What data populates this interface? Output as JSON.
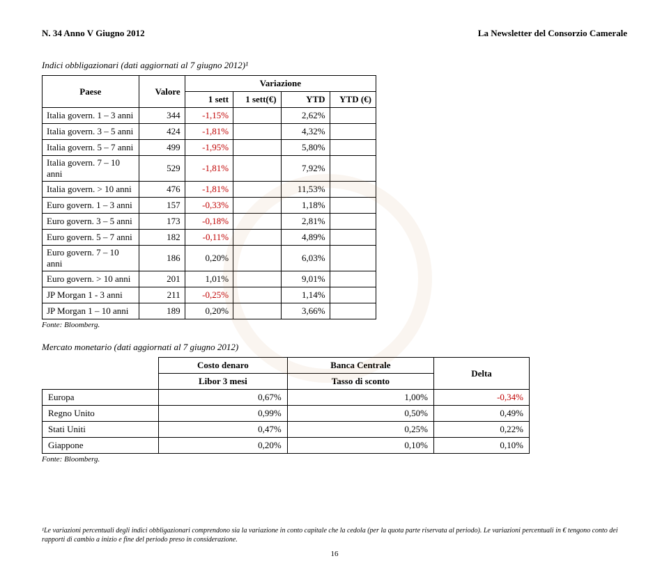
{
  "header": {
    "left": "N. 34   Anno V   Giugno 2012",
    "right": "La Newsletter del Consorzio Camerale"
  },
  "table1": {
    "title": "Indici obbligazionari (dati aggiornati al 7 giugno 2012)¹",
    "headers": {
      "paese": "Paese",
      "valore": "Valore",
      "variazione": "Variazione",
      "sett": "1 sett",
      "sett_e": "1 sett(€)",
      "ytd": "YTD",
      "ytd_e": "YTD (€)"
    },
    "rows": [
      {
        "paese": "Italia govern. 1 – 3 anni",
        "valore": "344",
        "sett": "-1,15%",
        "sett_neg": true,
        "sett_e": "",
        "ytd": "2,62%",
        "ytd_neg": false,
        "ytd_e": ""
      },
      {
        "paese": "Italia govern. 3 – 5 anni",
        "valore": "424",
        "sett": "-1,81%",
        "sett_neg": true,
        "sett_e": "",
        "ytd": "4,32%",
        "ytd_neg": false,
        "ytd_e": ""
      },
      {
        "paese": "Italia govern. 5 – 7 anni",
        "valore": "499",
        "sett": "-1,95%",
        "sett_neg": true,
        "sett_e": "",
        "ytd": "5,80%",
        "ytd_neg": false,
        "ytd_e": ""
      },
      {
        "paese": "Italia govern. 7 – 10 anni",
        "valore": "529",
        "sett": "-1,81%",
        "sett_neg": true,
        "sett_e": "",
        "ytd": "7,92%",
        "ytd_neg": false,
        "ytd_e": ""
      },
      {
        "paese": "Italia govern. > 10 anni",
        "valore": "476",
        "sett": "-1,81%",
        "sett_neg": true,
        "sett_e": "",
        "ytd": "11,53%",
        "ytd_neg": false,
        "ytd_e": ""
      },
      {
        "paese": "Euro govern. 1 – 3 anni",
        "valore": "157",
        "sett": "-0,33%",
        "sett_neg": true,
        "sett_e": "",
        "ytd": "1,18%",
        "ytd_neg": false,
        "ytd_e": ""
      },
      {
        "paese": "Euro govern. 3 – 5 anni",
        "valore": "173",
        "sett": "-0,18%",
        "sett_neg": true,
        "sett_e": "",
        "ytd": "2,81%",
        "ytd_neg": false,
        "ytd_e": ""
      },
      {
        "paese": "Euro govern. 5 – 7 anni",
        "valore": "182",
        "sett": "-0,11%",
        "sett_neg": true,
        "sett_e": "",
        "ytd": "4,89%",
        "ytd_neg": false,
        "ytd_e": ""
      },
      {
        "paese": "Euro govern. 7 – 10 anni",
        "valore": "186",
        "sett": "0,20%",
        "sett_neg": false,
        "sett_e": "",
        "ytd": "6,03%",
        "ytd_neg": false,
        "ytd_e": ""
      },
      {
        "paese": "Euro govern. > 10 anni",
        "valore": "201",
        "sett": "1,01%",
        "sett_neg": false,
        "sett_e": "",
        "ytd": "9,01%",
        "ytd_neg": false,
        "ytd_e": ""
      },
      {
        "paese": "JP Morgan 1 - 3 anni",
        "valore": "211",
        "sett": "-0,25%",
        "sett_neg": true,
        "sett_e": "",
        "ytd": "1,14%",
        "ytd_neg": false,
        "ytd_e": ""
      },
      {
        "paese": "JP Morgan 1 – 10 anni",
        "valore": "189",
        "sett": "0,20%",
        "sett_neg": false,
        "sett_e": "",
        "ytd": "3,66%",
        "ytd_neg": false,
        "ytd_e": ""
      }
    ],
    "fonte": "Fonte: Bloomberg."
  },
  "table2": {
    "title": "Mercato monetario (dati aggiornati al 7 giugno 2012)",
    "headers": {
      "costo": "Costo denaro",
      "libor": "Libor 3 mesi",
      "banca": "Banca Centrale",
      "tasso": "Tasso di sconto",
      "delta": "Delta"
    },
    "rows": [
      {
        "label": "Europa",
        "costo": "0,67%",
        "banca": "1,00%",
        "delta": "-0,34%",
        "delta_neg": true
      },
      {
        "label": "Regno Unito",
        "costo": "0,99%",
        "banca": "0,50%",
        "delta": "0,49%",
        "delta_neg": false
      },
      {
        "label": "Stati Uniti",
        "costo": "0,47%",
        "banca": "0,25%",
        "delta": "0,22%",
        "delta_neg": false
      },
      {
        "label": "Giappone",
        "costo": "0,20%",
        "banca": "0,10%",
        "delta": "0,10%",
        "delta_neg": false
      }
    ],
    "fonte": "Fonte: Bloomberg."
  },
  "footnote": "¹Le variazioni percentuali degli indici obbligazionari comprendono sia la variazione in conto capitale che la cedola (per la quota parte riservata al periodo). Le variazioni percentuali in € tengono conto dei rapporti di cambio a inizio e fine del periodo preso in considerazione.",
  "pagenum": "16"
}
